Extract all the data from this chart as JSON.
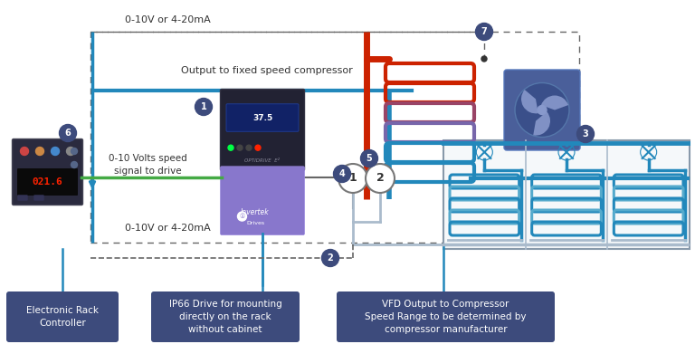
{
  "bg_color": "#ffffff",
  "dark_blue": "#3d4b7c",
  "red_pipe": "#cc2200",
  "blue_pipe": "#2288bb",
  "light_blue": "#55aacc",
  "gray": "#999999",
  "gray_dark": "#666666",
  "green": "#44aa44",
  "box_color": "#3d4b7c",
  "drive_dark": "#222233",
  "drive_purple": "#8877bb",
  "fan_box_color": "#4a5f9a",
  "label_top_signal": "0-10V or 4-20mA",
  "label_fixed": "Output to fixed speed compressor",
  "label_speed": "0-10 Volts speed\nsignal to drive",
  "label_bottom_signal": "0-10V or 4-20mA",
  "label_box1": "Electronic Rack\nController",
  "label_box2": "IP66 Drive for mounting\ndirectly on the rack\nwithout cabinet",
  "label_box3": "VFD Output to Compressor\nSpeed Range to be determined by\ncompressor manufacturer",
  "coil_colors_hot": [
    "#cc2200",
    "#cc2200",
    "#aa3344",
    "#7766aa",
    "#2288bb",
    "#2288bb"
  ],
  "rack_bg": "#f0f4f8",
  "rack_border": "#aabbcc"
}
